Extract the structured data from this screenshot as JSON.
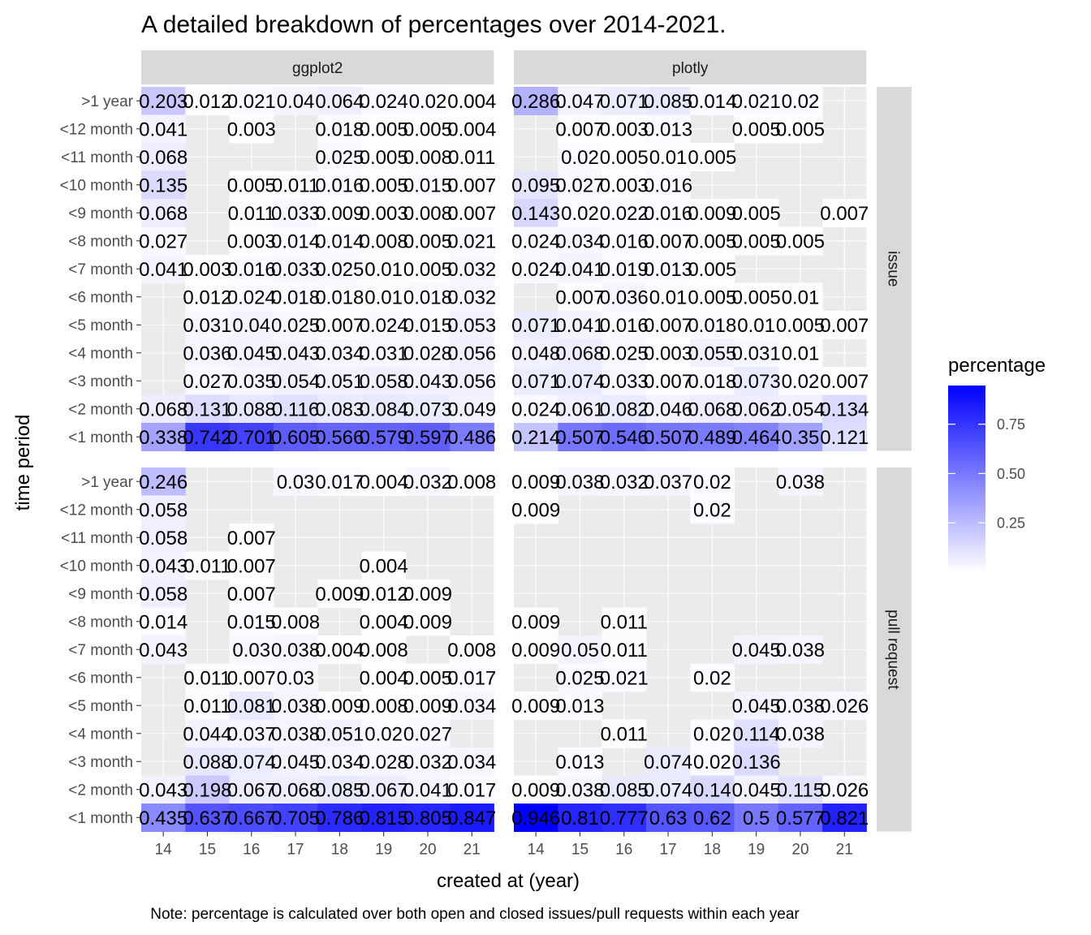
{
  "chart_data": {
    "type": "heatmap",
    "title": "A detailed breakdown of percentages over 2014-2021.",
    "xlabel": "created at (year)",
    "ylabel": "time period",
    "caption": "Note: percentage is calculated over both open and closed issues/pull requests within each year",
    "x_categories": [
      "14",
      "15",
      "16",
      "17",
      "18",
      "19",
      "20",
      "21"
    ],
    "y_categories": [
      ">1 year",
      "<12 month",
      "<11 month",
      "<10 month",
      "<9 month",
      "<8 month",
      "<7 month",
      "<6 month",
      "<5 month",
      "<4 month",
      "<3 month",
      "<2 month",
      "<1 month"
    ],
    "facet_columns": [
      "ggplot2",
      "plotly"
    ],
    "facet_rows": [
      "issue",
      "pull request"
    ],
    "legend": {
      "title": "percentage",
      "breaks": [
        0.25,
        0.5,
        0.75
      ],
      "break_labels": [
        "0.25",
        "0.50",
        "0.75"
      ],
      "range": [
        0,
        0.946
      ],
      "low_color": "#ffffff",
      "high_color": "#0000ff",
      "position": "right"
    },
    "panels": [
      {
        "col": "ggplot2",
        "row": "issue",
        "cells": [
          [
            0.203,
            0.012,
            0.021,
            0.04,
            0.064,
            0.024,
            0.02,
            0.004
          ],
          [
            0.041,
            null,
            0.003,
            null,
            0.018,
            0.005,
            0.005,
            0.004
          ],
          [
            0.068,
            null,
            null,
            null,
            0.025,
            0.005,
            0.008,
            0.011
          ],
          [
            0.135,
            null,
            0.005,
            0.011,
            0.016,
            0.005,
            0.015,
            0.007
          ],
          [
            0.068,
            null,
            0.011,
            0.033,
            0.009,
            0.003,
            0.008,
            0.007
          ],
          [
            0.027,
            null,
            0.003,
            0.014,
            0.014,
            0.008,
            0.005,
            0.021
          ],
          [
            0.041,
            0.003,
            0.016,
            0.033,
            0.025,
            0.01,
            0.005,
            0.032
          ],
          [
            null,
            0.012,
            0.024,
            0.018,
            0.018,
            0.01,
            0.018,
            0.032
          ],
          [
            null,
            0.031,
            0.04,
            0.025,
            0.007,
            0.024,
            0.015,
            0.053
          ],
          [
            null,
            0.036,
            0.045,
            0.043,
            0.034,
            0.031,
            0.028,
            0.056
          ],
          [
            null,
            0.027,
            0.035,
            0.054,
            0.051,
            0.058,
            0.043,
            0.056
          ],
          [
            0.068,
            0.131,
            0.088,
            0.116,
            0.083,
            0.084,
            0.073,
            0.049
          ],
          [
            0.338,
            0.742,
            0.701,
            0.605,
            0.566,
            0.579,
            0.597,
            0.486
          ]
        ]
      },
      {
        "col": "plotly",
        "row": "issue",
        "cells": [
          [
            0.286,
            0.047,
            0.071,
            0.085,
            0.014,
            0.021,
            0.02,
            null
          ],
          [
            null,
            0.007,
            0.003,
            0.013,
            null,
            0.005,
            0.005,
            null
          ],
          [
            null,
            0.02,
            0.005,
            0.01,
            0.005,
            null,
            null,
            null
          ],
          [
            0.095,
            0.027,
            0.003,
            0.016,
            null,
            null,
            null,
            null
          ],
          [
            0.143,
            0.02,
            0.022,
            0.016,
            0.009,
            0.005,
            null,
            0.007
          ],
          [
            0.024,
            0.034,
            0.016,
            0.007,
            0.005,
            0.005,
            0.005,
            null
          ],
          [
            0.024,
            0.041,
            0.019,
            0.013,
            0.005,
            null,
            null,
            null
          ],
          [
            null,
            0.007,
            0.036,
            0.01,
            0.005,
            0.005,
            0.01,
            null
          ],
          [
            0.071,
            0.041,
            0.016,
            0.007,
            0.018,
            0.01,
            0.005,
            0.007
          ],
          [
            0.048,
            0.068,
            0.025,
            0.003,
            0.055,
            0.031,
            0.01,
            null
          ],
          [
            0.071,
            0.074,
            0.033,
            0.007,
            0.018,
            0.073,
            0.02,
            0.007
          ],
          [
            0.024,
            0.061,
            0.082,
            0.046,
            0.068,
            0.062,
            0.054,
            0.134
          ],
          [
            0.214,
            0.507,
            0.546,
            0.507,
            0.489,
            0.464,
            0.35,
            0.121
          ]
        ]
      },
      {
        "col": "ggplot2",
        "row": "pull request",
        "cells": [
          [
            0.246,
            null,
            null,
            0.03,
            0.017,
            0.004,
            0.032,
            0.008
          ],
          [
            0.058,
            null,
            null,
            null,
            null,
            null,
            null,
            null
          ],
          [
            0.058,
            null,
            0.007,
            null,
            null,
            null,
            null,
            null
          ],
          [
            0.043,
            0.011,
            0.007,
            null,
            null,
            0.004,
            null,
            null
          ],
          [
            0.058,
            null,
            0.007,
            null,
            0.009,
            0.012,
            0.009,
            null
          ],
          [
            0.014,
            null,
            0.015,
            0.008,
            null,
            0.004,
            0.009,
            null
          ],
          [
            0.043,
            null,
            0.03,
            0.038,
            0.004,
            0.008,
            null,
            0.008
          ],
          [
            null,
            0.011,
            0.007,
            0.03,
            null,
            0.004,
            0.005,
            0.017
          ],
          [
            null,
            0.011,
            0.081,
            0.038,
            0.009,
            0.008,
            0.009,
            0.034
          ],
          [
            null,
            0.044,
            0.037,
            0.038,
            0.051,
            0.02,
            0.027,
            null
          ],
          [
            null,
            0.088,
            0.074,
            0.045,
            0.034,
            0.028,
            0.032,
            0.034
          ],
          [
            0.043,
            0.198,
            0.067,
            0.068,
            0.085,
            0.067,
            0.041,
            0.017
          ],
          [
            0.435,
            0.637,
            0.667,
            0.705,
            0.786,
            0.815,
            0.805,
            0.847
          ]
        ]
      },
      {
        "col": "plotly",
        "row": "pull request",
        "cells": [
          [
            0.009,
            0.038,
            0.032,
            0.037,
            0.02,
            null,
            0.038,
            null
          ],
          [
            0.009,
            null,
            null,
            null,
            0.02,
            null,
            null,
            null
          ],
          [
            null,
            null,
            null,
            null,
            null,
            null,
            null,
            null
          ],
          [
            null,
            null,
            null,
            null,
            null,
            null,
            null,
            null
          ],
          [
            null,
            null,
            null,
            null,
            null,
            null,
            null,
            null
          ],
          [
            0.009,
            null,
            0.011,
            null,
            null,
            null,
            null,
            null
          ],
          [
            0.009,
            0.05,
            0.011,
            null,
            null,
            0.045,
            0.038,
            null
          ],
          [
            null,
            0.025,
            0.021,
            null,
            0.02,
            null,
            null,
            null
          ],
          [
            0.009,
            0.013,
            null,
            null,
            null,
            0.045,
            0.038,
            0.026
          ],
          [
            null,
            null,
            0.011,
            null,
            0.02,
            0.114,
            0.038,
            null
          ],
          [
            null,
            0.013,
            null,
            0.074,
            0.02,
            0.136,
            null,
            null
          ],
          [
            0.009,
            0.038,
            0.085,
            0.074,
            0.14,
            0.045,
            0.115,
            0.026
          ],
          [
            0.946,
            0.81,
            0.777,
            0.63,
            0.62,
            0.5,
            0.577,
            0.821
          ]
        ]
      }
    ]
  }
}
